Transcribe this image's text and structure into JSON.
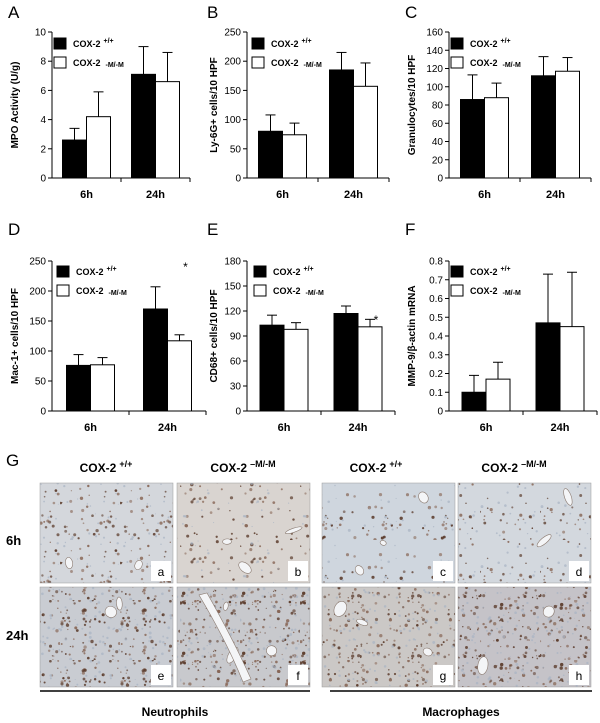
{
  "legend": {
    "wt_name": "COX-2",
    "wt_sup": "+/+",
    "mut_name": "COX-2",
    "mut_sup": "-M/-M"
  },
  "colors": {
    "wt_fill": "#000000",
    "mut_fill": "#ffffff",
    "bar_stroke": "#000000"
  },
  "chart_data": [
    {
      "panel": "A",
      "type": "bar",
      "ylabel": "MPO Activity (U/g)",
      "categories": [
        "6h",
        "24h"
      ],
      "ylim": [
        0,
        10
      ],
      "ticks": [
        0,
        2,
        4,
        6,
        8,
        10
      ],
      "series": [
        {
          "name": "COX-2 +/+",
          "values": [
            2.6,
            7.1
          ],
          "errors": [
            0.8,
            1.9
          ]
        },
        {
          "name": "COX-2 -M/-M",
          "values": [
            4.2,
            6.6
          ],
          "errors": [
            1.7,
            2.0
          ]
        }
      ],
      "significance": []
    },
    {
      "panel": "B",
      "type": "bar",
      "ylabel": "Ly-6G+ cells/10 HPF",
      "categories": [
        "6h",
        "24h"
      ],
      "ylim": [
        0,
        250
      ],
      "ticks": [
        0,
        50,
        100,
        150,
        200,
        250
      ],
      "series": [
        {
          "name": "COX-2 +/+",
          "values": [
            80,
            185
          ],
          "errors": [
            28,
            30
          ]
        },
        {
          "name": "COX-2 -M/-M",
          "values": [
            74,
            157
          ],
          "errors": [
            20,
            40
          ]
        }
      ],
      "significance": []
    },
    {
      "panel": "C",
      "type": "bar",
      "ylabel": "Granulocytes/10 HPF",
      "categories": [
        "6h",
        "24h"
      ],
      "ylim": [
        0,
        160
      ],
      "ticks": [
        0,
        20,
        40,
        60,
        80,
        100,
        120,
        140,
        160
      ],
      "series": [
        {
          "name": "COX-2 +/+",
          "values": [
            86,
            112
          ],
          "errors": [
            27,
            21
          ]
        },
        {
          "name": "COX-2 -M/-M",
          "values": [
            88,
            117
          ],
          "errors": [
            16,
            15
          ]
        }
      ],
      "significance": []
    },
    {
      "panel": "D",
      "type": "bar",
      "ylabel": "Mac-1+ cells/10 HPF",
      "categories": [
        "6h",
        "24h"
      ],
      "ylim": [
        0,
        250
      ],
      "ticks": [
        0,
        50,
        100,
        150,
        200,
        250
      ],
      "series": [
        {
          "name": "COX-2 +/+",
          "values": [
            76,
            170
          ],
          "errors": [
            18,
            37
          ]
        },
        {
          "name": "COX-2 -M/-M",
          "values": [
            77,
            117
          ],
          "errors": [
            12,
            10
          ]
        }
      ],
      "significance": [
        {
          "category": "24h",
          "label": "*"
        }
      ]
    },
    {
      "panel": "E",
      "type": "bar",
      "ylabel": "CD68+ cells/10 HPF",
      "categories": [
        "6h",
        "24h"
      ],
      "ylim": [
        0,
        180
      ],
      "ticks": [
        0,
        30,
        60,
        90,
        120,
        150,
        180
      ],
      "series": [
        {
          "name": "COX-2 +/+",
          "values": [
            103,
            117
          ],
          "errors": [
            12,
            9
          ]
        },
        {
          "name": "COX-2 -M/-M",
          "values": [
            98,
            101
          ],
          "errors": [
            8,
            9
          ]
        }
      ],
      "significance": [
        {
          "category": "24h",
          "label": "*"
        }
      ]
    },
    {
      "panel": "F",
      "type": "bar",
      "ylabel": "MMP-9/β-actin mRNA",
      "categories": [
        "6h",
        "24h"
      ],
      "ylim": [
        0,
        0.8
      ],
      "ticks": [
        "0",
        "0.1",
        "0.2",
        "0.3",
        "0.4",
        "0.5",
        "0.6",
        "0.7",
        "0.8"
      ],
      "series": [
        {
          "name": "COX-2 +/+",
          "values": [
            0.1,
            0.47
          ],
          "errors": [
            0.09,
            0.26
          ]
        },
        {
          "name": "COX-2 -M/-M",
          "values": [
            0.17,
            0.45
          ],
          "errors": [
            0.09,
            0.29
          ]
        }
      ],
      "significance": []
    }
  ],
  "histology": {
    "panel": "G",
    "columns": [
      {
        "name": "COX-2",
        "sup": "+/+"
      },
      {
        "name": "COX-2",
        "sup": "–M/-M"
      },
      {
        "name": "COX-2",
        "sup": "+/+"
      },
      {
        "name": "COX-2",
        "sup": "–M/-M"
      }
    ],
    "rows": [
      "6h",
      "24h"
    ],
    "tiles": [
      "a",
      "b",
      "c",
      "d",
      "e",
      "f",
      "g",
      "h"
    ],
    "groups": [
      "Neutrophils",
      "Macrophages"
    ]
  }
}
